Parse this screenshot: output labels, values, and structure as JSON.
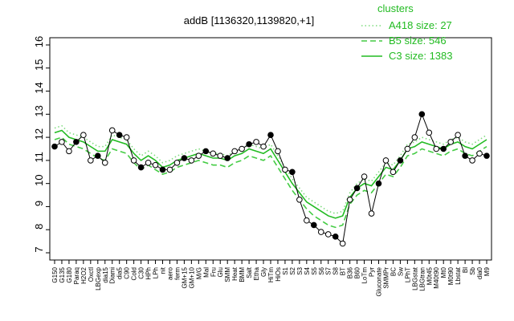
{
  "chart_data": {
    "type": "line",
    "title": "addB [1136320,1139820,+1]",
    "legend_title": "clusters",
    "legend_position": "top-right",
    "categories": [
      "G150",
      "G135",
      "G180",
      "Paraq",
      "H2O2",
      "Oxctl",
      "LBGexp",
      "dia15",
      "Diami",
      "dia5",
      "C90",
      "Cold",
      "C30",
      "HPh",
      "LPh",
      "nit",
      "aero",
      "ferm",
      "GM+15",
      "GM+10",
      "M/G",
      "Mal",
      "Fru",
      "Glu",
      "SMM",
      "Heat",
      "BMM",
      "Salt",
      "Etha",
      "Gly",
      "HiTm",
      "HiOs",
      "S1",
      "S2",
      "S3",
      "S4",
      "S5",
      "S6",
      "S7",
      "S8",
      "BT",
      "B36",
      "B60",
      "LoTm",
      "Pyr",
      "Gluconate",
      "SMMPr",
      "BC",
      "Sw",
      "LPhT",
      "LBGstat",
      "LBGtran",
      "M0t45",
      "M40t90",
      "Mt0",
      "M0t90",
      "Lbstat",
      "Bl",
      "Sb",
      "dia0",
      "M9"
    ],
    "values": [
      11.6,
      11.8,
      11.4,
      11.8,
      12.1,
      11.0,
      11.2,
      10.9,
      12.3,
      12.1,
      12.0,
      11.0,
      10.7,
      10.9,
      10.8,
      10.6,
      10.6,
      10.9,
      11.1,
      11.0,
      11.2,
      11.4,
      11.3,
      11.2,
      11.1,
      11.4,
      11.5,
      11.7,
      11.8,
      11.6,
      12.1,
      11.4,
      10.6,
      10.5,
      9.3,
      8.4,
      8.2,
      7.9,
      7.8,
      7.7,
      7.4,
      9.3,
      9.8,
      10.3,
      8.7,
      10.0,
      11.0,
      10.5,
      11.0,
      11.5,
      12.0,
      13.0,
      12.2,
      11.5,
      11.5,
      11.8,
      12.1,
      11.2,
      11.0,
      11.3,
      11.2
    ],
    "color": "#000000",
    "series": [
      {
        "name": "A418 size: 27",
        "color": "#7fdc7f",
        "dash": "dotted",
        "values": [
          12.4,
          12.5,
          12.2,
          12.1,
          12.0,
          11.8,
          11.6,
          11.6,
          12.1,
          12.0,
          11.9,
          11.5,
          11.2,
          11.4,
          11.2,
          10.9,
          11.0,
          11.2,
          11.3,
          11.4,
          11.5,
          11.4,
          11.3,
          11.3,
          11.2,
          11.4,
          11.5,
          11.7,
          11.6,
          11.5,
          11.7,
          11.2,
          10.7,
          10.2,
          9.8,
          9.4,
          9.2,
          9.0,
          8.8,
          8.7,
          8.8,
          9.6,
          10.0,
          10.2,
          10.1,
          10.5,
          10.9,
          10.8,
          11.2,
          11.7,
          11.8,
          12.0,
          11.9,
          11.8,
          11.7,
          11.9,
          12.0,
          11.8,
          11.7,
          11.9,
          12.1
        ]
      },
      {
        "name": "B5 size: 546",
        "color": "#44cc44",
        "dash": "dashed",
        "values": [
          11.9,
          12.0,
          11.7,
          11.6,
          11.5,
          11.3,
          11.1,
          11.0,
          11.5,
          11.4,
          11.3,
          10.9,
          10.6,
          10.8,
          10.6,
          10.4,
          10.5,
          10.7,
          10.8,
          10.9,
          11.0,
          10.9,
          10.8,
          10.8,
          10.7,
          10.9,
          11.0,
          11.2,
          11.1,
          11.0,
          11.2,
          10.7,
          10.2,
          9.7,
          9.3,
          8.9,
          8.6,
          8.4,
          8.2,
          8.1,
          8.2,
          9.1,
          9.5,
          9.7,
          9.6,
          10.0,
          10.4,
          10.3,
          10.7,
          11.2,
          11.3,
          11.5,
          11.4,
          11.3,
          11.2,
          11.4,
          11.5,
          11.3,
          11.2,
          11.4,
          11.6
        ]
      },
      {
        "name": "C3 size: 1383",
        "color": "#22bb22",
        "dash": "solid",
        "values": [
          12.2,
          12.3,
          12.0,
          11.9,
          11.8,
          11.6,
          11.4,
          11.4,
          11.9,
          11.8,
          11.7,
          11.3,
          11.0,
          11.2,
          11.0,
          10.7,
          10.8,
          11.0,
          11.1,
          11.2,
          11.3,
          11.2,
          11.1,
          11.1,
          11.0,
          11.2,
          11.3,
          11.5,
          11.4,
          11.3,
          11.5,
          11.0,
          10.5,
          10.0,
          9.6,
          9.2,
          9.0,
          8.8,
          8.6,
          8.5,
          8.6,
          9.4,
          9.8,
          10.0,
          9.9,
          10.3,
          10.7,
          10.6,
          11.0,
          11.5,
          11.6,
          11.8,
          11.7,
          11.6,
          11.5,
          11.7,
          11.8,
          11.6,
          11.5,
          11.7,
          11.9
        ]
      }
    ],
    "ylim": [
      7,
      16
    ],
    "yticks": [
      7,
      8,
      9,
      10,
      11,
      12,
      13,
      14,
      15,
      16
    ]
  }
}
